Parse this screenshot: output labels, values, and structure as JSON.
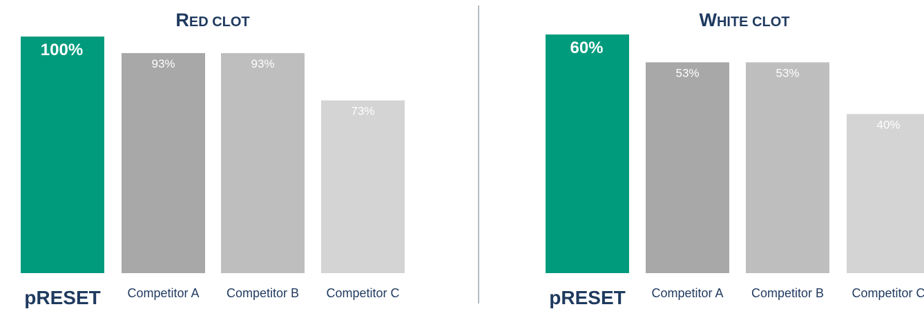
{
  "chart_data": [
    {
      "type": "bar",
      "title": "Red clot",
      "categories": [
        "pRESET",
        "Competitor A",
        "Competitor B",
        "Competitor C"
      ],
      "values": [
        100,
        93,
        93,
        73
      ],
      "value_labels": [
        "100%",
        "93%",
        "93%",
        "73%"
      ],
      "ylim": [
        0,
        100
      ],
      "grid": false,
      "legend": "none",
      "colors": [
        "#009b7d",
        "#a8a8a8",
        "#bebebe",
        "#d4d4d4"
      ]
    },
    {
      "type": "bar",
      "title": "White clot",
      "categories": [
        "pRESET",
        "Competitor A",
        "Competitor B",
        "Competitor C"
      ],
      "values": [
        60,
        53,
        53,
        40
      ],
      "value_labels": [
        "60%",
        "53%",
        "53%",
        "40%"
      ],
      "ylim": [
        0,
        60
      ],
      "grid": false,
      "legend": "none",
      "colors": [
        "#009b7d",
        "#a8a8a8",
        "#bebebe",
        "#d4d4d4"
      ]
    }
  ],
  "colors": {
    "title": "#1f3a5f",
    "divider": "#9aa8b4"
  }
}
